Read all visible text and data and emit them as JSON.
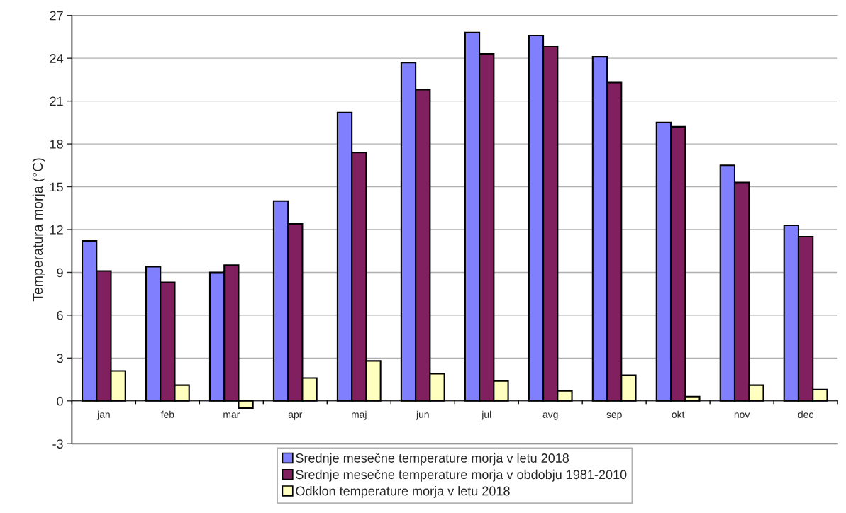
{
  "chart_data": {
    "type": "bar",
    "ylabel": "Temperatura morja (°C)",
    "categories": [
      "jan",
      "feb",
      "mar",
      "apr",
      "maj",
      "jun",
      "jul",
      "avg",
      "sep",
      "okt",
      "nov",
      "dec"
    ],
    "series": [
      {
        "name": "Srednje mesečne temperature morja v letu 2018",
        "color": "#8080ff",
        "values": [
          11.2,
          9.4,
          9.0,
          14.0,
          20.2,
          23.7,
          25.8,
          25.6,
          24.1,
          19.5,
          16.5,
          12.3
        ]
      },
      {
        "name": "Srednje mesečne temperature morja v obdobju 1981-2010",
        "color": "#80205f",
        "values": [
          9.1,
          8.3,
          9.5,
          12.4,
          17.4,
          21.8,
          24.3,
          24.8,
          22.3,
          19.2,
          15.3,
          11.5
        ]
      },
      {
        "name": "Odklon temperature morja v letu 2018",
        "color": "#ffffc0",
        "values": [
          2.1,
          1.1,
          -0.5,
          1.6,
          2.8,
          1.9,
          1.4,
          0.7,
          1.8,
          0.3,
          1.1,
          0.8
        ]
      }
    ],
    "ylim": [
      -3,
      27
    ],
    "yticks": [
      -3,
      0,
      3,
      6,
      9,
      12,
      15,
      18,
      21,
      24,
      27
    ],
    "grid": "y",
    "legend": "bottom"
  }
}
